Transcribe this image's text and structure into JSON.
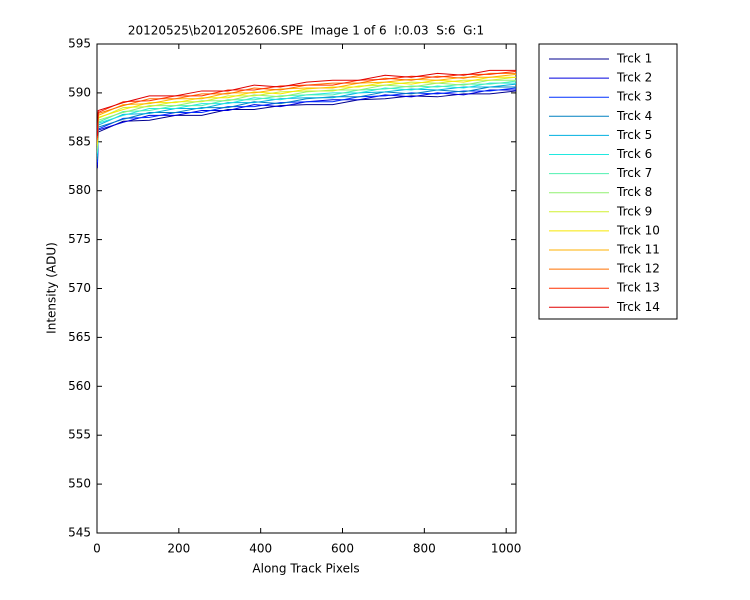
{
  "chart_data": {
    "type": "line",
    "title": "20120525\\b2012052606.SPE  Image 1 of 6  I:0.03  S:6  G:1",
    "xlabel": "Along Track Pixels",
    "ylabel": "Intensity (ADU)",
    "x": [
      1,
      3,
      64,
      128,
      192,
      256,
      320,
      384,
      448,
      512,
      576,
      640,
      704,
      768,
      832,
      896,
      960,
      1024
    ],
    "xlim": [
      0,
      1024
    ],
    "xticks": [
      0,
      200,
      400,
      600,
      800,
      1000
    ],
    "ylim": [
      545,
      595
    ],
    "yticks": [
      545,
      550,
      555,
      560,
      565,
      570,
      575,
      580,
      585,
      590,
      595
    ],
    "grid": false,
    "legend": "outside-right",
    "series": [
      {
        "name": "Trck 1",
        "color": "#00008f",
        "values": [
          582.3,
          586.0,
          587.1,
          587.2,
          587.7,
          587.7,
          588.3,
          588.3,
          588.7,
          588.8,
          588.8,
          589.3,
          589.4,
          589.7,
          589.6,
          589.9,
          589.9,
          590.2
        ]
      },
      {
        "name": "Trck 2",
        "color": "#0000df",
        "values": [
          582.6,
          586.2,
          587.0,
          587.7,
          587.7,
          588.2,
          588.2,
          588.8,
          588.6,
          589.1,
          589.3,
          589.3,
          589.8,
          589.6,
          590.0,
          589.8,
          590.3,
          590.3
        ]
      },
      {
        "name": "Trck 3",
        "color": "#0030ff",
        "values": [
          582.9,
          586.3,
          587.4,
          587.5,
          588.0,
          588.0,
          588.6,
          588.6,
          589.0,
          589.1,
          589.1,
          589.6,
          589.7,
          590.0,
          589.9,
          590.2,
          590.2,
          590.5
        ]
      },
      {
        "name": "Trck 4",
        "color": "#0080c0",
        "values": [
          583.2,
          586.5,
          587.3,
          588.0,
          588.0,
          588.5,
          588.5,
          589.1,
          588.9,
          589.4,
          589.6,
          589.6,
          590.1,
          589.9,
          590.3,
          590.1,
          590.6,
          590.6
        ]
      },
      {
        "name": "Trck 5",
        "color": "#00b0e0",
        "values": [
          583.5,
          586.7,
          587.8,
          587.9,
          588.4,
          588.4,
          589.0,
          589.0,
          589.4,
          589.5,
          589.5,
          590.0,
          590.1,
          590.4,
          590.3,
          590.6,
          590.6,
          590.9
        ]
      },
      {
        "name": "Trck 6",
        "color": "#20e8e0",
        "values": [
          583.8,
          586.9,
          587.7,
          588.4,
          588.4,
          588.9,
          588.9,
          589.5,
          589.3,
          589.8,
          590.0,
          590.0,
          590.5,
          590.3,
          590.7,
          590.5,
          591.0,
          591.0
        ]
      },
      {
        "name": "Trck 7",
        "color": "#50f0b0",
        "values": [
          584.0,
          587.0,
          588.1,
          588.2,
          588.7,
          588.7,
          589.3,
          589.3,
          589.7,
          589.8,
          589.8,
          590.3,
          590.4,
          590.7,
          590.6,
          590.9,
          590.9,
          591.2
        ]
      },
      {
        "name": "Trck 8",
        "color": "#90f070",
        "values": [
          584.3,
          587.2,
          588.0,
          588.7,
          588.7,
          589.2,
          589.2,
          589.8,
          589.6,
          590.1,
          590.3,
          590.3,
          590.8,
          590.6,
          591.0,
          590.8,
          591.3,
          591.3
        ]
      },
      {
        "name": "Trck 9",
        "color": "#d0f030",
        "values": [
          584.6,
          587.4,
          588.5,
          588.6,
          589.1,
          589.1,
          589.7,
          589.7,
          590.1,
          590.2,
          590.2,
          590.7,
          590.8,
          591.1,
          591.0,
          591.3,
          591.3,
          591.6
        ]
      },
      {
        "name": "Trck 10",
        "color": "#f8e800",
        "values": [
          584.8,
          587.5,
          588.3,
          589.0,
          589.0,
          589.5,
          589.5,
          590.1,
          589.9,
          590.4,
          590.6,
          590.6,
          591.1,
          590.9,
          591.3,
          591.1,
          591.6,
          591.6
        ]
      },
      {
        "name": "Trck 11",
        "color": "#ffb000",
        "values": [
          585.0,
          587.7,
          588.8,
          588.9,
          589.4,
          589.4,
          590.0,
          590.0,
          590.4,
          590.5,
          590.5,
          591.0,
          591.1,
          591.4,
          591.3,
          591.6,
          591.6,
          591.9
        ]
      },
      {
        "name": "Trck 12",
        "color": "#ff7000",
        "values": [
          585.2,
          587.9,
          588.7,
          589.4,
          589.4,
          589.9,
          589.9,
          590.5,
          590.3,
          590.8,
          591.0,
          591.0,
          591.5,
          591.3,
          591.7,
          591.5,
          592.0,
          592.0
        ]
      },
      {
        "name": "Trck 13",
        "color": "#ff3000",
        "values": [
          585.4,
          588.0,
          589.1,
          589.2,
          589.7,
          589.7,
          590.3,
          590.3,
          590.7,
          590.8,
          590.8,
          591.3,
          591.4,
          591.7,
          591.6,
          591.9,
          591.9,
          592.2
        ]
      },
      {
        "name": "Trck 14",
        "color": "#e00000",
        "values": [
          585.6,
          588.2,
          589.0,
          589.7,
          589.7,
          590.2,
          590.2,
          590.8,
          590.6,
          591.1,
          591.3,
          591.3,
          591.8,
          591.6,
          592.0,
          591.8,
          592.3,
          592.3
        ]
      }
    ]
  }
}
